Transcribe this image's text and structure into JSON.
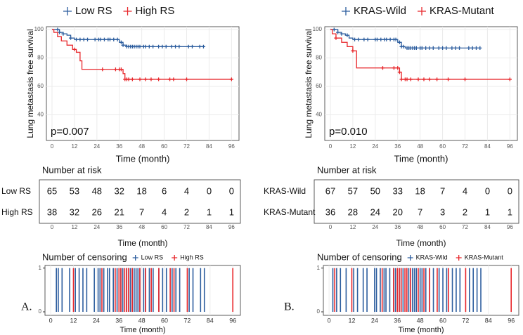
{
  "panel_labels": [
    "A.",
    "B."
  ],
  "chart_data": [
    {
      "type": "line",
      "step": true,
      "ylabel": "Lung metastasis free survival",
      "xlabel": "Time (month)",
      "annotation": "p=0.007",
      "xlim": [
        -3,
        100
      ],
      "ylim": [
        22,
        102
      ],
      "xticks": [
        0,
        12,
        24,
        36,
        48,
        60,
        72,
        84,
        96
      ],
      "yticks": [
        40,
        60,
        80,
        100
      ],
      "grid": true,
      "legend": "top",
      "series": [
        {
          "name": "Low RS",
          "color": "#2c5d9e",
          "x": [
            0,
            4,
            6,
            8,
            10,
            12,
            36,
            38,
            40,
            81
          ],
          "values": [
            100,
            98,
            97,
            96,
            94,
            93,
            91,
            89,
            88,
            88
          ]
        },
        {
          "name": "High RS",
          "color": "#e8262a",
          "x": [
            0,
            1,
            3,
            5,
            8,
            11,
            13,
            15,
            16,
            36,
            38,
            39,
            96
          ],
          "values": [
            100,
            98,
            95,
            92,
            89,
            86,
            84,
            78,
            72,
            72,
            69,
            65,
            65
          ]
        }
      ]
    },
    {
      "type": "table",
      "title": "Number at risk",
      "xlabel": "Time (month)",
      "xlim": [
        -3,
        100
      ],
      "xticks": [
        0,
        12,
        24,
        36,
        48,
        60,
        72,
        84,
        96
      ],
      "rows": [
        {
          "name": "Low RS",
          "values": [
            65,
            53,
            48,
            32,
            18,
            6,
            4,
            0,
            0
          ]
        },
        {
          "name": "High RS",
          "values": [
            38,
            32,
            26,
            21,
            7,
            4,
            2,
            1,
            1
          ]
        }
      ]
    },
    {
      "type": "censor",
      "title": "Number of censoring",
      "xlabel": "Time (month)",
      "xlim": [
        -3,
        100
      ],
      "ylim": [
        -0.08,
        1.06
      ],
      "xticks": [
        0,
        12,
        24,
        36,
        48,
        60,
        72,
        84,
        96
      ],
      "yticks": [
        0,
        1
      ],
      "series": [
        {
          "name": "Low RS",
          "color": "#2c5d9e",
          "x": [
            3,
            4,
            6,
            10,
            13,
            15,
            17,
            19,
            23,
            25,
            26,
            28,
            30,
            31,
            33,
            35,
            37,
            38,
            40,
            41,
            42,
            43,
            44,
            45,
            46,
            47,
            49,
            50,
            52,
            54,
            57,
            59,
            61,
            64,
            66,
            68,
            73,
            75,
            79,
            81
          ],
          "values": [
            1,
            1,
            1,
            1,
            1,
            1,
            1,
            1,
            1,
            1,
            1,
            1,
            1,
            1,
            1,
            1,
            1,
            1,
            1,
            1,
            1,
            1,
            1,
            1,
            1,
            1,
            1,
            1,
            1,
            1,
            1,
            1,
            1,
            1,
            1,
            1,
            1,
            1,
            1,
            1
          ]
        },
        {
          "name": "High RS",
          "color": "#e8262a",
          "x": [
            12,
            27,
            34,
            36,
            37,
            39,
            40,
            41,
            43,
            47,
            50,
            53,
            57,
            63,
            65,
            72,
            96
          ],
          "values": [
            1,
            1,
            1,
            1,
            1,
            1,
            1,
            1,
            1,
            1,
            1,
            1,
            1,
            1,
            1,
            1,
            1
          ]
        }
      ]
    },
    {
      "type": "line",
      "step": true,
      "ylabel": "Lung metastasis free survival",
      "xlabel": "Time (month)",
      "annotation": "p=0.010",
      "xlim": [
        -3,
        100
      ],
      "ylim": [
        22,
        102
      ],
      "xticks": [
        0,
        12,
        24,
        36,
        48,
        60,
        72,
        84,
        96
      ],
      "yticks": [
        40,
        60,
        80,
        100
      ],
      "grid": true,
      "legend": "top",
      "series": [
        {
          "name": "KRAS-Wild",
          "color": "#2c5d9e",
          "x": [
            0,
            4,
            6,
            8,
            10,
            12,
            36,
            38,
            40,
            80
          ],
          "values": [
            100,
            98,
            97,
            96,
            94,
            93,
            91,
            88,
            87,
            87
          ]
        },
        {
          "name": "KRAS-Mutant",
          "color": "#e8262a",
          "x": [
            0,
            1,
            3,
            6,
            9,
            12,
            14,
            36,
            37,
            38,
            96
          ],
          "values": [
            100,
            97,
            94,
            91,
            88,
            85,
            73,
            73,
            70,
            65,
            65
          ]
        }
      ]
    },
    {
      "type": "table",
      "title": "Number at risk",
      "xlabel": "Time (month)",
      "xlim": [
        -3,
        100
      ],
      "xticks": [
        0,
        12,
        24,
        36,
        48,
        60,
        72,
        84,
        96
      ],
      "rows": [
        {
          "name": "KRAS-Wild",
          "values": [
            67,
            57,
            50,
            33,
            18,
            7,
            4,
            0,
            0
          ]
        },
        {
          "name": "KRAS-Mutant",
          "values": [
            36,
            28,
            24,
            20,
            7,
            3,
            2,
            1,
            1
          ]
        }
      ]
    },
    {
      "type": "censor",
      "title": "Number of censoring",
      "xlabel": "Time (month)",
      "xlim": [
        -3,
        100
      ],
      "ylim": [
        -0.08,
        1.06
      ],
      "xticks": [
        0,
        12,
        24,
        36,
        48,
        60,
        72,
        84,
        96
      ],
      "yticks": [
        0,
        1
      ],
      "series": [
        {
          "name": "KRAS-Wild",
          "color": "#2c5d9e",
          "x": [
            2,
            4,
            6,
            9,
            13,
            15,
            18,
            20,
            24,
            25,
            27,
            29,
            30,
            32,
            34,
            35,
            37,
            38,
            39,
            41,
            42,
            43,
            44,
            45,
            46,
            48,
            49,
            51,
            53,
            55,
            58,
            60,
            62,
            65,
            67,
            69,
            74,
            76,
            78,
            80
          ],
          "values": [
            1,
            1,
            1,
            1,
            1,
            1,
            1,
            1,
            1,
            1,
            1,
            1,
            1,
            1,
            1,
            1,
            1,
            1,
            1,
            1,
            1,
            1,
            1,
            1,
            1,
            1,
            1,
            1,
            1,
            1,
            1,
            1,
            1,
            1,
            1,
            1,
            1,
            1,
            1,
            1
          ]
        },
        {
          "name": "KRAS-Mutant",
          "color": "#e8262a",
          "x": [
            3,
            12,
            28,
            34,
            36,
            37,
            38,
            40,
            41,
            43,
            47,
            50,
            53,
            57,
            63,
            72,
            96
          ],
          "values": [
            1,
            1,
            1,
            1,
            1,
            1,
            1,
            1,
            1,
            1,
            1,
            1,
            1,
            1,
            1,
            1,
            1
          ]
        }
      ]
    }
  ]
}
